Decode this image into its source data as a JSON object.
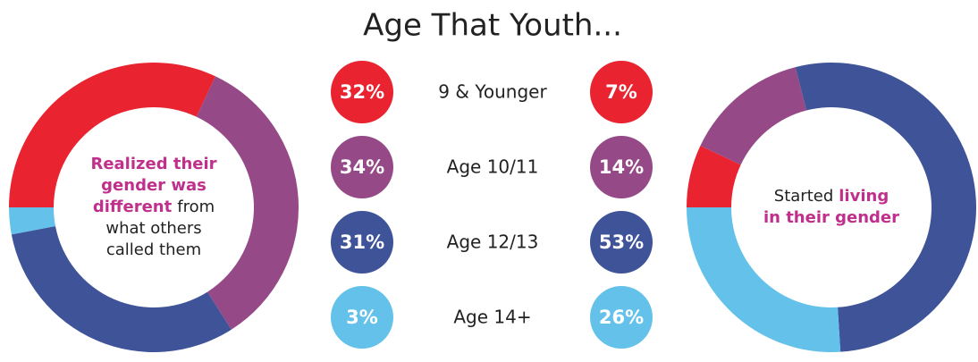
{
  "chart_data": {
    "type": "donut",
    "title": "Age That Youth...",
    "categories": [
      "9 & Younger",
      "Age 10/11",
      "Age 12/13",
      "Age 14+"
    ],
    "colors": [
      "#e9232f",
      "#954a87",
      "#3f5399",
      "#63c1ea"
    ],
    "series": [
      {
        "values": [
          32,
          34,
          31,
          3
        ],
        "value_labels": [
          "32%",
          "34%",
          "31%",
          "3%"
        ],
        "center_text": [
          [
            {
              "text": "Realized their",
              "emphasis": true
            }
          ],
          [
            {
              "text": "gender was",
              "emphasis": true
            }
          ],
          [
            {
              "text": "different",
              "emphasis": true
            },
            {
              "text": "from",
              "emphasis": false
            }
          ],
          [
            {
              "text": "what others",
              "emphasis": false
            }
          ],
          [
            {
              "text": "called them",
              "emphasis": false
            }
          ]
        ]
      },
      {
        "values": [
          7,
          14,
          53,
          26
        ],
        "value_labels": [
          "7%",
          "14%",
          "53%",
          "26%"
        ],
        "center_text": [
          [
            {
              "text": "Started",
              "emphasis": false
            },
            {
              "text": "living",
              "emphasis": true
            }
          ],
          [
            {
              "text": "in their gender",
              "emphasis": true
            }
          ]
        ]
      }
    ]
  }
}
